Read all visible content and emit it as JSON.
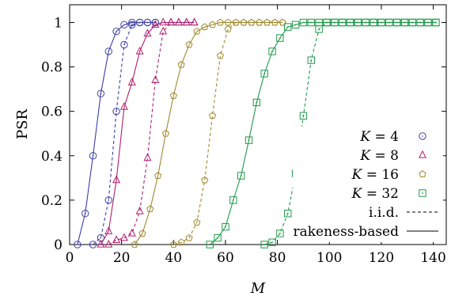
{
  "chart_data": {
    "type": "line",
    "xlabel": "M",
    "ylabel": "PSR",
    "xlim": [
      0,
      145
    ],
    "ylim": [
      0,
      1.08
    ],
    "x_ticks": [
      0,
      20,
      40,
      60,
      80,
      100,
      120,
      140
    ],
    "y_ticks": [
      0,
      0.2,
      0.4,
      0.6,
      0.8,
      1
    ],
    "x_tick_labels": [
      "0",
      "20",
      "40",
      "60",
      "80",
      "100",
      "120",
      "140"
    ],
    "y_tick_labels": [
      "0",
      "0.2",
      "0.4",
      "0.6",
      "0.8",
      "1"
    ],
    "legend_position": "bottom-right",
    "legend": {
      "series_labels": [
        "K = 4",
        "K = 8",
        "K = 16",
        "K = 32"
      ],
      "style_labels": [
        "i.i.d.",
        "rakeness-based"
      ]
    },
    "series": [
      {
        "name": "K = 4",
        "color": "#3b3fa8",
        "marker": "circle",
        "rakeness_x": [
          3,
          6,
          9,
          12,
          15,
          18,
          21,
          24,
          27,
          30,
          33
        ],
        "rakeness_y": [
          0.0,
          0.14,
          0.4,
          0.68,
          0.87,
          0.96,
          0.99,
          1.0,
          1.0,
          1.0,
          1.0
        ],
        "iid_x": [
          9,
          12,
          15,
          18,
          21,
          24,
          27,
          30,
          33
        ],
        "iid_y": [
          0.0,
          0.03,
          0.2,
          0.6,
          0.9,
          0.99,
          1.0,
          1.0,
          1.0
        ]
      },
      {
        "name": "K = 8",
        "color": "#b01e70",
        "marker": "triangle",
        "rakeness_x": [
          12,
          15,
          18,
          21,
          24,
          27,
          30,
          33,
          36,
          39,
          42,
          45,
          48
        ],
        "rakeness_y": [
          0.0,
          0.06,
          0.29,
          0.62,
          0.73,
          0.87,
          0.95,
          0.99,
          1.0,
          1.0,
          1.0,
          1.0,
          1.0
        ],
        "iid_x": [
          15,
          18,
          21,
          24,
          27,
          30,
          33,
          36,
          39,
          42,
          45,
          48
        ],
        "iid_y": [
          0.0,
          0.02,
          0.03,
          0.05,
          0.15,
          0.39,
          0.74,
          0.96,
          1.0,
          1.0,
          1.0,
          1.0
        ]
      },
      {
        "name": "K = 16",
        "color": "#a08a2e",
        "marker": "pentagon",
        "rakeness_x": [
          25,
          28,
          31,
          34,
          37,
          40,
          43,
          46,
          49,
          52,
          55,
          58,
          61,
          64,
          67,
          70,
          73,
          76,
          79,
          82
        ],
        "rakeness_y": [
          0.0,
          0.05,
          0.16,
          0.31,
          0.5,
          0.67,
          0.81,
          0.9,
          0.96,
          0.98,
          0.99,
          1.0,
          1.0,
          1.0,
          1.0,
          1.0,
          1.0,
          1.0,
          1.0,
          1.0
        ],
        "iid_x": [
          40,
          43,
          46,
          49,
          52,
          55,
          58,
          61,
          64,
          67,
          70,
          73,
          76,
          79,
          82
        ],
        "iid_y": [
          0.0,
          0.01,
          0.03,
          0.1,
          0.29,
          0.58,
          0.85,
          0.97,
          1.0,
          1.0,
          1.0,
          1.0,
          1.0,
          1.0,
          1.0
        ]
      },
      {
        "name": "K = 32",
        "color": "#1f9a4a",
        "marker": "square",
        "rakeness_x": [
          54,
          57,
          60,
          63,
          66,
          69,
          72,
          75,
          78,
          81,
          84,
          87,
          90,
          93,
          96,
          99,
          102,
          105,
          108,
          111,
          114,
          117,
          120,
          123,
          126,
          129,
          132,
          135,
          138,
          141
        ],
        "rakeness_y": [
          0.0,
          0.03,
          0.08,
          0.2,
          0.31,
          0.47,
          0.64,
          0.77,
          0.87,
          0.93,
          0.98,
          0.99,
          1.0,
          1.0,
          1.0,
          1.0,
          1.0,
          1.0,
          1.0,
          1.0,
          1.0,
          1.0,
          1.0,
          1.0,
          1.0,
          1.0,
          1.0,
          1.0,
          1.0,
          1.0
        ],
        "iid_x": [
          75,
          78,
          81,
          84,
          87,
          90,
          93,
          96,
          99,
          102,
          105,
          108,
          111,
          114,
          117,
          120,
          123,
          126,
          129,
          132,
          135,
          138,
          141
        ],
        "iid_y": [
          0.0,
          0.01,
          0.05,
          0.14,
          0.32,
          0.58,
          0.83,
          0.97,
          1.0,
          1.0,
          1.0,
          1.0,
          1.0,
          1.0,
          1.0,
          1.0,
          1.0,
          1.0,
          1.0,
          1.0,
          1.0,
          1.0,
          1.0
        ]
      }
    ]
  }
}
